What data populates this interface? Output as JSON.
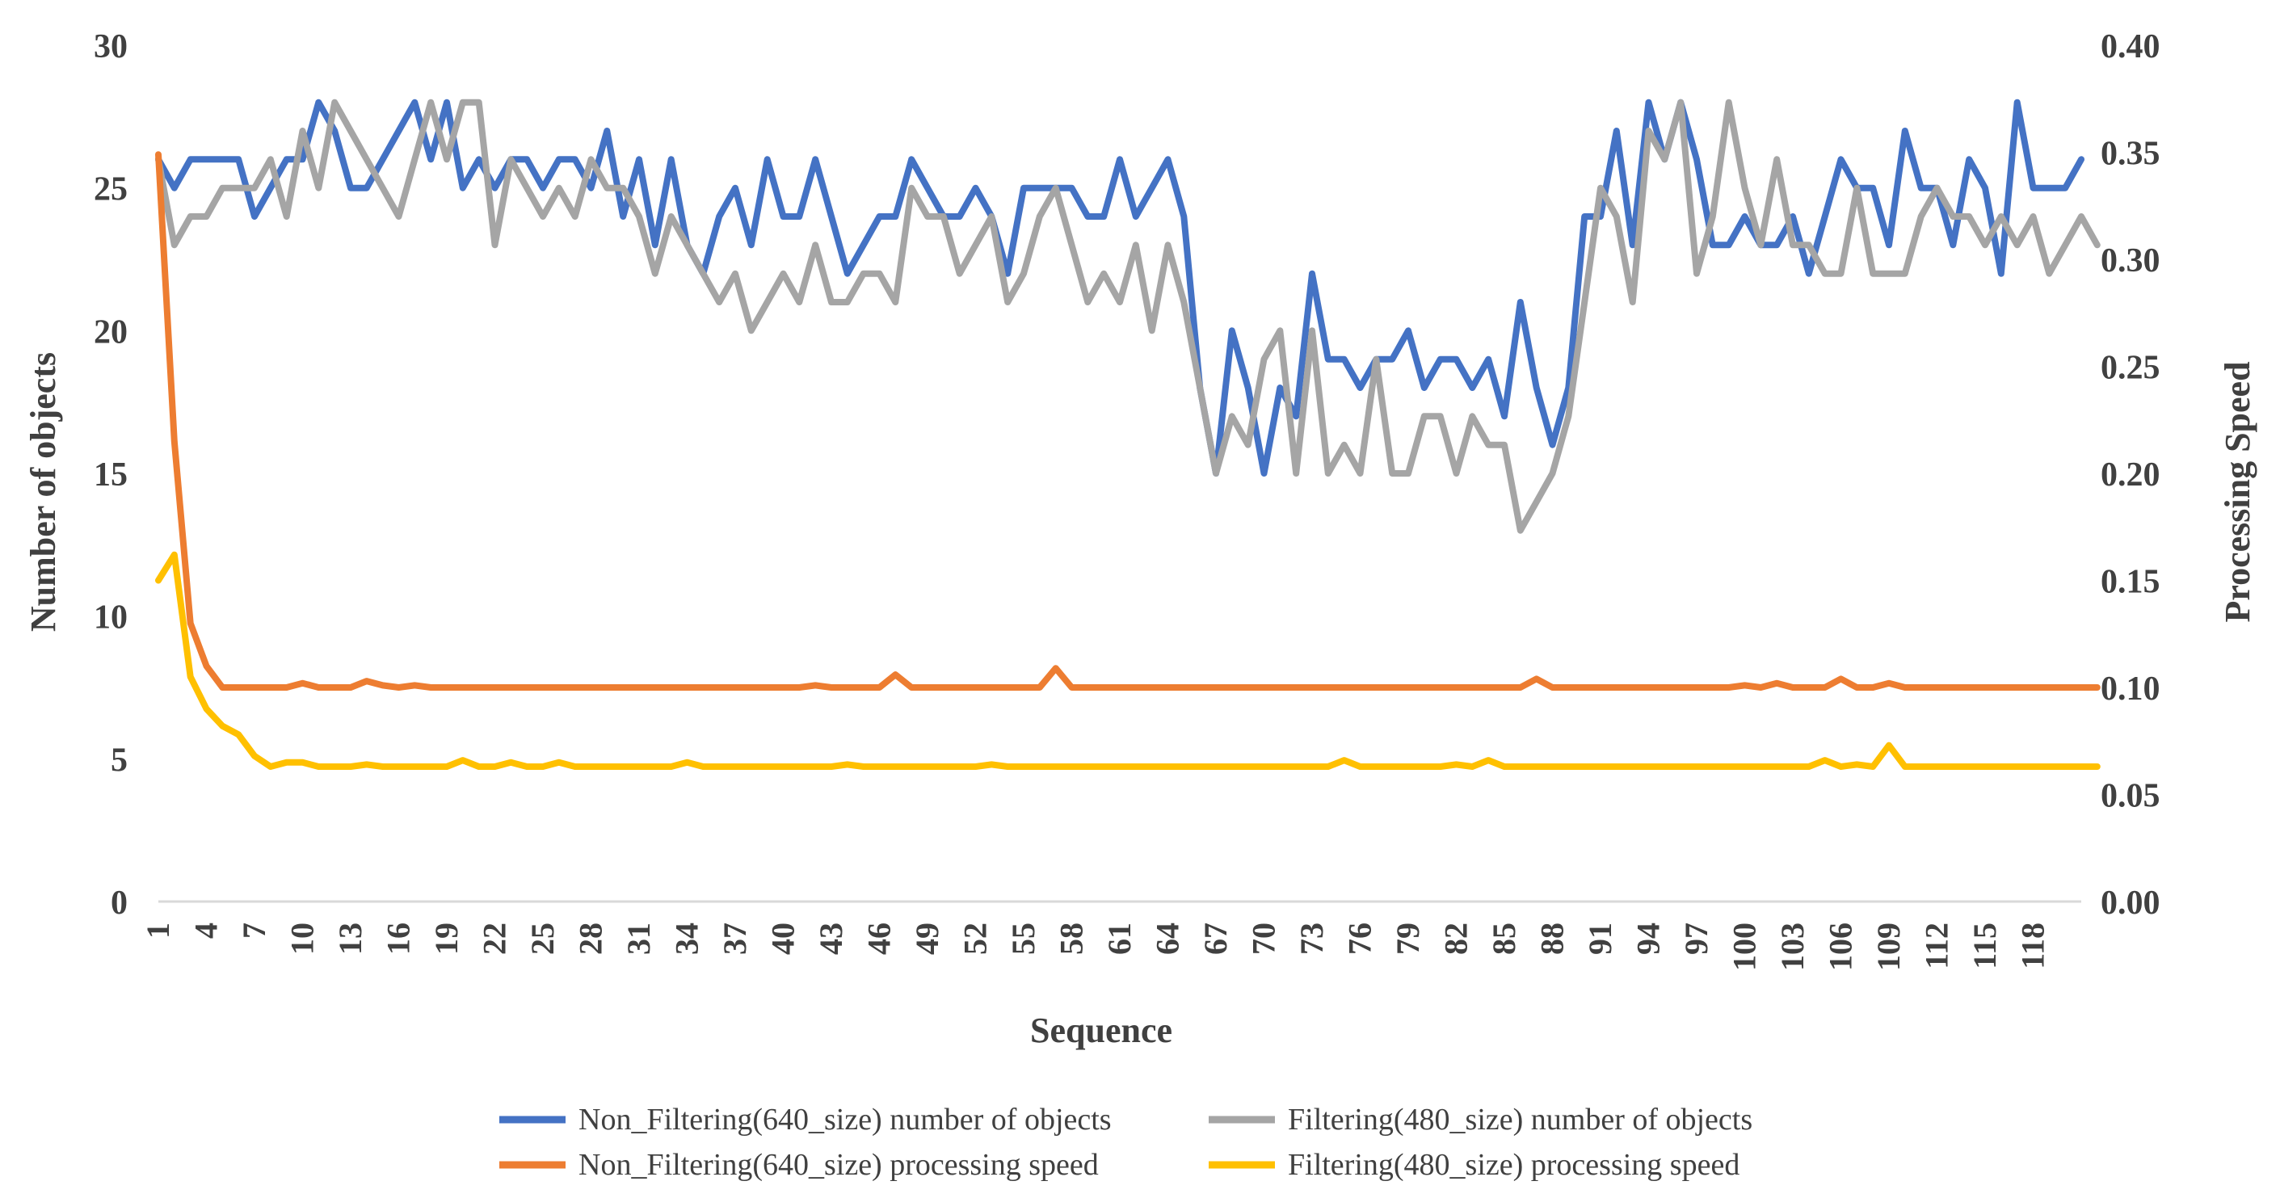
{
  "chart_data": {
    "type": "line",
    "x_tick_labels": [
      "1",
      "4",
      "7",
      "10",
      "13",
      "16",
      "19",
      "22",
      "25",
      "28",
      "31",
      "34",
      "37",
      "40",
      "43",
      "46",
      "49",
      "52",
      "55",
      "58",
      "61",
      "64",
      "67",
      "70",
      "73",
      "76",
      "79",
      "82",
      "85",
      "88",
      "91",
      "94",
      "97",
      "100",
      "103",
      "106",
      "109",
      "112",
      "115",
      "118"
    ],
    "xlabel": "Sequence",
    "ylabel_left": "Number of objects",
    "ylabel_right": "Processing Speed",
    "ylim_left": [
      0,
      30
    ],
    "ylim_right": [
      0,
      0.4
    ],
    "yticks_left": [
      "0",
      "5",
      "10",
      "15",
      "20",
      "25",
      "30"
    ],
    "yticks_right": [
      "0.00",
      "0.05",
      "0.10",
      "0.15",
      "0.20",
      "0.25",
      "0.30",
      "0.35",
      "0.40"
    ],
    "series": [
      {
        "name": "Non_Filtering(640_size) number of objects",
        "axis": "left",
        "color": "#4472c4",
        "values": [
          26,
          25,
          26,
          26,
          26,
          26,
          24,
          25,
          26,
          26,
          28,
          27,
          25,
          25,
          26,
          27,
          28,
          26,
          28,
          25,
          26,
          25,
          26,
          26,
          25,
          26,
          26,
          25,
          27,
          24,
          26,
          23,
          26,
          23,
          22,
          24,
          25,
          23,
          26,
          24,
          24,
          26,
          24,
          22,
          23,
          24,
          24,
          26,
          25,
          24,
          24,
          25,
          24,
          22,
          25,
          25,
          25,
          25,
          24,
          24,
          26,
          24,
          25,
          26,
          24,
          18,
          15,
          20,
          18,
          15,
          18,
          17,
          22,
          19,
          19,
          18,
          19,
          19,
          20,
          18,
          19,
          19,
          18,
          19,
          17,
          21,
          18,
          16,
          18,
          24,
          24,
          27,
          23,
          28,
          26,
          28,
          26,
          23,
          23,
          24,
          23,
          23,
          24,
          22,
          24,
          26,
          25,
          25,
          23,
          27,
          25,
          25,
          23,
          26,
          25,
          22,
          28,
          25,
          25,
          25,
          26
        ]
      },
      {
        "name": "Filtering(480_size) number of objects",
        "axis": "left",
        "color": "#a5a5a5",
        "values": [
          26,
          23,
          24,
          24,
          25,
          25,
          25,
          26,
          24,
          27,
          25,
          28,
          27,
          26,
          25,
          24,
          26,
          28,
          26,
          28,
          28,
          23,
          26,
          25,
          24,
          25,
          24,
          26,
          25,
          25,
          24,
          22,
          24,
          23,
          22,
          21,
          22,
          20,
          21,
          22,
          21,
          23,
          21,
          21,
          22,
          22,
          21,
          25,
          24,
          24,
          22,
          23,
          24,
          21,
          22,
          24,
          25,
          23,
          21,
          22,
          21,
          23,
          20,
          23,
          21,
          18,
          15,
          17,
          16,
          19,
          20,
          15,
          20,
          15,
          16,
          15,
          19,
          15,
          15,
          17,
          17,
          15,
          17,
          16,
          16,
          13,
          14,
          15,
          17,
          21,
          25,
          24,
          21,
          27,
          26,
          28,
          22,
          24,
          28,
          25,
          23,
          26,
          23,
          23,
          22,
          22,
          25,
          22,
          22,
          22,
          24,
          25,
          24,
          24,
          23,
          24,
          23,
          24,
          22,
          23,
          24,
          23
        ]
      },
      {
        "name": "Non_Filtering(640_size) processing speed",
        "axis": "right",
        "color": "#ed7d31",
        "values": [
          0.349,
          0.215,
          0.13,
          0.11,
          0.1,
          0.1,
          0.1,
          0.1,
          0.1,
          0.102,
          0.1,
          0.1,
          0.1,
          0.103,
          0.101,
          0.1,
          0.101,
          0.1,
          0.1,
          0.1,
          0.1,
          0.1,
          0.1,
          0.1,
          0.1,
          0.1,
          0.1,
          0.1,
          0.1,
          0.1,
          0.1,
          0.1,
          0.1,
          0.1,
          0.1,
          0.1,
          0.1,
          0.1,
          0.1,
          0.1,
          0.1,
          0.101,
          0.1,
          0.1,
          0.1,
          0.1,
          0.106,
          0.1,
          0.1,
          0.1,
          0.1,
          0.1,
          0.1,
          0.1,
          0.1,
          0.1,
          0.109,
          0.1,
          0.1,
          0.1,
          0.1,
          0.1,
          0.1,
          0.1,
          0.1,
          0.1,
          0.1,
          0.1,
          0.1,
          0.1,
          0.1,
          0.1,
          0.1,
          0.1,
          0.1,
          0.1,
          0.1,
          0.1,
          0.1,
          0.1,
          0.1,
          0.1,
          0.1,
          0.1,
          0.1,
          0.1,
          0.104,
          0.1,
          0.1,
          0.1,
          0.1,
          0.1,
          0.1,
          0.1,
          0.1,
          0.1,
          0.1,
          0.1,
          0.1,
          0.101,
          0.1,
          0.102,
          0.1,
          0.1,
          0.1,
          0.104,
          0.1,
          0.1,
          0.102,
          0.1,
          0.1,
          0.1,
          0.1,
          0.1,
          0.1,
          0.1,
          0.1,
          0.1,
          0.1,
          0.1,
          0.1,
          0.1
        ]
      },
      {
        "name": "Filtering(480_size) processing speed",
        "axis": "right",
        "color": "#ffc000",
        "values": [
          0.15,
          0.162,
          0.105,
          0.09,
          0.082,
          0.078,
          0.068,
          0.063,
          0.065,
          0.065,
          0.063,
          0.063,
          0.063,
          0.064,
          0.063,
          0.063,
          0.063,
          0.063,
          0.063,
          0.066,
          0.063,
          0.063,
          0.065,
          0.063,
          0.063,
          0.065,
          0.063,
          0.063,
          0.063,
          0.063,
          0.063,
          0.063,
          0.063,
          0.065,
          0.063,
          0.063,
          0.063,
          0.063,
          0.063,
          0.063,
          0.063,
          0.063,
          0.063,
          0.064,
          0.063,
          0.063,
          0.063,
          0.063,
          0.063,
          0.063,
          0.063,
          0.063,
          0.064,
          0.063,
          0.063,
          0.063,
          0.063,
          0.063,
          0.063,
          0.063,
          0.063,
          0.063,
          0.063,
          0.063,
          0.063,
          0.063,
          0.063,
          0.063,
          0.063,
          0.063,
          0.063,
          0.063,
          0.063,
          0.063,
          0.066,
          0.063,
          0.063,
          0.063,
          0.063,
          0.063,
          0.063,
          0.064,
          0.063,
          0.066,
          0.063,
          0.063,
          0.063,
          0.063,
          0.063,
          0.063,
          0.063,
          0.063,
          0.063,
          0.063,
          0.063,
          0.063,
          0.063,
          0.063,
          0.063,
          0.063,
          0.063,
          0.063,
          0.063,
          0.063,
          0.066,
          0.063,
          0.064,
          0.063,
          0.073,
          0.063,
          0.063,
          0.063,
          0.063,
          0.063,
          0.063,
          0.063,
          0.063,
          0.063,
          0.063,
          0.063,
          0.063,
          0.063
        ]
      }
    ],
    "legend": {
      "placement": "bottom"
    }
  }
}
